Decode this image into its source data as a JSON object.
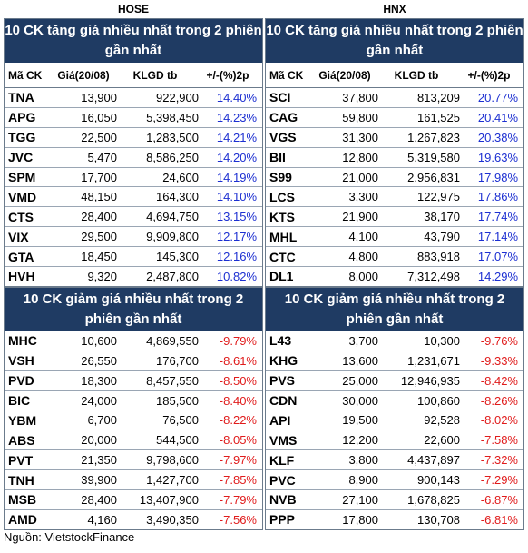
{
  "hose": {
    "exchange": "HOSE",
    "gainers_title": "10 CK tăng giá nhiều nhất trong 2 phiên gần nhất",
    "losers_title": "10 CK giảm giá nhiều nhất trong 2 phiên gần nhất",
    "columns": [
      "Mã CK",
      "Giá(20/08)",
      "KLGD tb",
      "+/-(%)2p"
    ],
    "gainers": [
      [
        "TNA",
        "13,900",
        "922,900",
        "14.40%"
      ],
      [
        "APG",
        "16,050",
        "5,398,450",
        "14.23%"
      ],
      [
        "TGG",
        "22,500",
        "1,283,500",
        "14.21%"
      ],
      [
        "JVC",
        "5,470",
        "8,586,250",
        "14.20%"
      ],
      [
        "SPM",
        "17,700",
        "24,600",
        "14.19%"
      ],
      [
        "VMD",
        "48,150",
        "164,300",
        "14.10%"
      ],
      [
        "CTS",
        "28,400",
        "4,694,750",
        "13.15%"
      ],
      [
        "VIX",
        "29,500",
        "9,909,800",
        "12.17%"
      ],
      [
        "GTA",
        "18,450",
        "145,300",
        "12.16%"
      ],
      [
        "HVH",
        "9,320",
        "2,487,800",
        "10.82%"
      ]
    ],
    "losers": [
      [
        "MHC",
        "10,600",
        "4,869,550",
        "-9.79%"
      ],
      [
        "VSH",
        "26,550",
        "176,700",
        "-8.61%"
      ],
      [
        "PVD",
        "18,300",
        "8,457,550",
        "-8.50%"
      ],
      [
        "BIC",
        "24,000",
        "185,500",
        "-8.40%"
      ],
      [
        "YBM",
        "6,700",
        "76,500",
        "-8.22%"
      ],
      [
        "ABS",
        "20,000",
        "544,500",
        "-8.05%"
      ],
      [
        "PVT",
        "21,350",
        "9,798,600",
        "-7.97%"
      ],
      [
        "TNH",
        "39,900",
        "1,427,700",
        "-7.85%"
      ],
      [
        "MSB",
        "28,400",
        "13,407,900",
        "-7.79%"
      ],
      [
        "AMD",
        "4,160",
        "3,490,350",
        "-7.56%"
      ]
    ]
  },
  "hnx": {
    "exchange": "HNX",
    "gainers_title": "10 CK tăng giá nhiều nhất trong 2 phiên gần nhất",
    "losers_title": "10 CK giảm giá nhiều nhất trong 2 phiên gần nhất",
    "columns": [
      "Mã CK",
      "Giá(20/08)",
      "KLGD tb",
      "+/-(%)2p"
    ],
    "gainers": [
      [
        "SCI",
        "37,800",
        "813,209",
        "20.77%"
      ],
      [
        "CAG",
        "59,800",
        "161,525",
        "20.41%"
      ],
      [
        "VGS",
        "31,300",
        "1,267,823",
        "20.38%"
      ],
      [
        "BII",
        "12,800",
        "5,319,580",
        "19.63%"
      ],
      [
        "S99",
        "21,000",
        "2,956,831",
        "17.98%"
      ],
      [
        "LCS",
        "3,300",
        "122,975",
        "17.86%"
      ],
      [
        "KTS",
        "21,900",
        "38,170",
        "17.74%"
      ],
      [
        "MHL",
        "4,100",
        "43,790",
        "17.14%"
      ],
      [
        "CTC",
        "4,800",
        "883,918",
        "17.07%"
      ],
      [
        "DL1",
        "8,000",
        "7,312,498",
        "14.29%"
      ]
    ],
    "losers": [
      [
        "L43",
        "3,700",
        "10,300",
        "-9.76%"
      ],
      [
        "KHG",
        "13,600",
        "1,231,671",
        "-9.33%"
      ],
      [
        "PVS",
        "25,000",
        "12,946,935",
        "-8.42%"
      ],
      [
        "CDN",
        "30,000",
        "100,860",
        "-8.26%"
      ],
      [
        "API",
        "19,500",
        "92,528",
        "-8.02%"
      ],
      [
        "VMS",
        "12,200",
        "22,600",
        "-7.58%"
      ],
      [
        "KLF",
        "3,800",
        "4,437,897",
        "-7.32%"
      ],
      [
        "PVC",
        "8,900",
        "900,143",
        "-7.29%"
      ],
      [
        "NVB",
        "27,100",
        "1,678,825",
        "-6.87%"
      ],
      [
        "PPP",
        "17,800",
        "130,708",
        "-6.81%"
      ]
    ]
  },
  "source": "Nguồn: VietstockFinance",
  "colors": {
    "header_bg": "#1f3b63",
    "gain": "#1c2fd1",
    "loss": "#e01b1b"
  }
}
